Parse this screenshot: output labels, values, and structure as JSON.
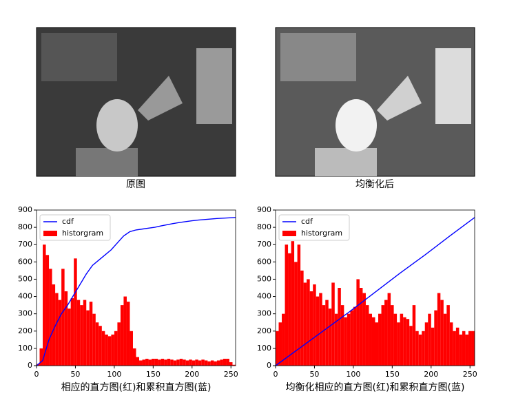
{
  "images": [
    {
      "caption": "原图"
    },
    {
      "caption": "均衡化后"
    }
  ],
  "chart_data": [
    {
      "type": "histogram",
      "xlabel": "相应的直方图(红)和累积直方图(蓝)",
      "legend": "upper left",
      "xlim": [
        0,
        256
      ],
      "ylim": [
        0,
        900
      ],
      "xticks": [
        0,
        50,
        100,
        150,
        200,
        250
      ],
      "yticks": [
        0,
        100,
        200,
        300,
        400,
        500,
        600,
        700,
        800,
        900
      ],
      "series": [
        {
          "name": "cdf",
          "type": "line",
          "color": "#0000ff",
          "x": [
            0,
            8,
            16,
            24,
            32,
            40,
            48,
            56,
            64,
            72,
            80,
            88,
            96,
            104,
            112,
            120,
            128,
            136,
            144,
            152,
            160,
            168,
            176,
            184,
            192,
            200,
            208,
            216,
            224,
            232,
            240,
            248,
            256
          ],
          "values": [
            0,
            30,
            150,
            230,
            300,
            350,
            410,
            470,
            530,
            580,
            610,
            640,
            670,
            710,
            750,
            775,
            785,
            790,
            795,
            800,
            808,
            815,
            822,
            828,
            833,
            838,
            842,
            845,
            848,
            851,
            853,
            855,
            857
          ]
        },
        {
          "name": "historgram",
          "type": "histogram",
          "color": "#ff0000",
          "bins": [
            0,
            4,
            8,
            12,
            16,
            20,
            24,
            28,
            32,
            36,
            40,
            44,
            48,
            52,
            56,
            60,
            64,
            68,
            72,
            76,
            80,
            84,
            88,
            92,
            96,
            100,
            104,
            108,
            112,
            116,
            120,
            124,
            128,
            132,
            136,
            140,
            144,
            148,
            152,
            156,
            160,
            164,
            168,
            172,
            176,
            180,
            184,
            188,
            192,
            196,
            200,
            204,
            208,
            212,
            216,
            220,
            224,
            228,
            232,
            236,
            240,
            244,
            248,
            252,
            256
          ],
          "values": [
            10,
            100,
            700,
            640,
            560,
            470,
            420,
            380,
            560,
            430,
            330,
            390,
            620,
            380,
            350,
            380,
            320,
            370,
            300,
            250,
            230,
            200,
            180,
            170,
            180,
            200,
            250,
            350,
            400,
            370,
            200,
            100,
            50,
            30,
            35,
            40,
            35,
            40,
            40,
            35,
            40,
            35,
            40,
            35,
            30,
            35,
            40,
            35,
            30,
            35,
            30,
            35,
            30,
            35,
            30,
            25,
            30,
            25,
            30,
            35,
            40,
            40,
            20,
            5
          ]
        }
      ]
    },
    {
      "type": "histogram",
      "xlabel": "均衡化相应的直方图(红)和累积直方图(蓝)",
      "legend": "upper left",
      "xlim": [
        0,
        256
      ],
      "ylim": [
        0,
        900
      ],
      "xticks": [
        0,
        50,
        100,
        150,
        200,
        250
      ],
      "yticks": [
        0,
        100,
        200,
        300,
        400,
        500,
        600,
        700,
        800,
        900
      ],
      "series": [
        {
          "name": "cdf",
          "type": "line",
          "color": "#0000ff",
          "x": [
            0,
            32,
            64,
            96,
            128,
            160,
            192,
            224,
            256
          ],
          "values": [
            0,
            105,
            210,
            315,
            425,
            535,
            640,
            750,
            857
          ]
        },
        {
          "name": "historgram",
          "type": "histogram",
          "color": "#ff0000",
          "bins": [
            0,
            4,
            8,
            12,
            16,
            20,
            24,
            28,
            32,
            36,
            40,
            44,
            48,
            52,
            56,
            60,
            64,
            68,
            72,
            76,
            80,
            84,
            88,
            92,
            96,
            100,
            104,
            108,
            112,
            116,
            120,
            124,
            128,
            132,
            136,
            140,
            144,
            148,
            152,
            156,
            160,
            164,
            168,
            172,
            176,
            180,
            184,
            188,
            192,
            196,
            200,
            204,
            208,
            212,
            216,
            220,
            224,
            228,
            232,
            236,
            240,
            244,
            248,
            252,
            256
          ],
          "values": [
            200,
            250,
            300,
            700,
            650,
            720,
            600,
            700,
            550,
            480,
            500,
            430,
            470,
            400,
            420,
            350,
            380,
            330,
            480,
            300,
            450,
            350,
            280,
            300,
            320,
            340,
            500,
            450,
            420,
            350,
            300,
            280,
            250,
            300,
            350,
            380,
            420,
            350,
            300,
            250,
            300,
            280,
            270,
            230,
            350,
            200,
            180,
            200,
            250,
            300,
            220,
            320,
            420,
            380,
            300,
            350,
            250,
            200,
            220,
            180,
            200,
            180,
            200,
            200
          ]
        }
      ]
    }
  ]
}
